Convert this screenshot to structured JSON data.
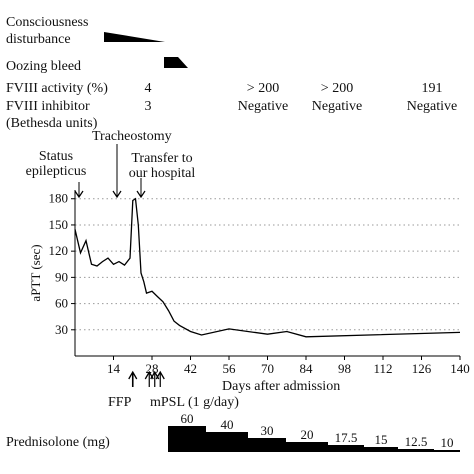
{
  "rows": {
    "consciousness": "Consciousness\ndisturbance",
    "oozing": "Oozing bleed",
    "fviii_activity": {
      "label": "FVIII activity (%)",
      "values": [
        "4",
        "> 200",
        "> 200",
        "191"
      ]
    },
    "fviii_inhibitor": {
      "label": "FVIII inhibitor\n(Bethesda units)",
      "values": [
        "3",
        "Negative",
        "Negative",
        "Negative"
      ]
    }
  },
  "events_top": [
    {
      "label": "Status\nepilepticus",
      "day": 0
    },
    {
      "label": "Tracheostomy",
      "day": 14
    },
    {
      "label": "Transfer to\nour hospital",
      "day": 24
    }
  ],
  "events_bottom": [
    {
      "label": "FFP",
      "days": [
        21
      ]
    },
    {
      "label": "mPSL (1 g/day)",
      "days": [
        27,
        29,
        31
      ]
    }
  ],
  "prednisolone_label": "Prednisolone (mg)",
  "prednisolone_steps": [
    "60",
    "40",
    "30",
    "20",
    "17.5",
    "15",
    "12.5",
    "10"
  ],
  "chart_data": {
    "type": "line",
    "xlabel": "Days after admission",
    "ylabel": "aPTT (sec)",
    "xlim": [
      0,
      140
    ],
    "ylim": [
      0,
      190
    ],
    "xticks": [
      14,
      28,
      42,
      56,
      70,
      84,
      98,
      112,
      126,
      140
    ],
    "yticks": [
      30,
      60,
      90,
      120,
      150,
      180
    ],
    "grid": "dotted horizontal",
    "series": [
      {
        "x": [
          0,
          2,
          4,
          6,
          8,
          10,
          12,
          14,
          16,
          18,
          20,
          21,
          22,
          23,
          24,
          25,
          26,
          28,
          30,
          32,
          34,
          36,
          38,
          42,
          46,
          56,
          70,
          77,
          84,
          140
        ],
        "y": [
          145,
          118,
          132,
          105,
          103,
          108,
          112,
          105,
          108,
          104,
          112,
          178,
          180,
          150,
          95,
          85,
          72,
          74,
          68,
          62,
          52,
          40,
          35,
          28,
          24,
          31,
          25,
          28,
          22,
          27
        ]
      }
    ]
  }
}
